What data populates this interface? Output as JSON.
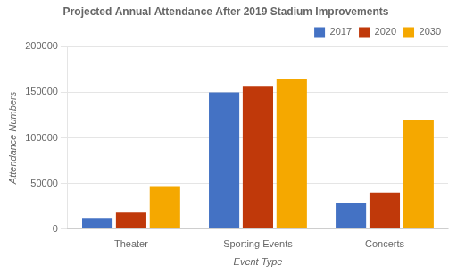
{
  "chart_data": {
    "type": "bar",
    "title": "Projected Annual Attendance After 2019 Stadium Improvements",
    "xlabel": "Event Type",
    "ylabel": "Attendance Numbers",
    "categories": [
      "Theater",
      "Sporting Events",
      "Concerts"
    ],
    "series": [
      {
        "name": "2017",
        "color": "#4472C4",
        "values": [
          12000,
          150000,
          28000
        ]
      },
      {
        "name": "2020",
        "color": "#C0390A",
        "values": [
          18000,
          157000,
          40000
        ]
      },
      {
        "name": "2030",
        "color": "#F5A800",
        "values": [
          47000,
          165000,
          120000
        ]
      }
    ],
    "ylim": [
      0,
      200000
    ],
    "yticks": [
      0,
      50000,
      100000,
      150000,
      200000
    ],
    "grid": true,
    "legend": "upper right"
  }
}
